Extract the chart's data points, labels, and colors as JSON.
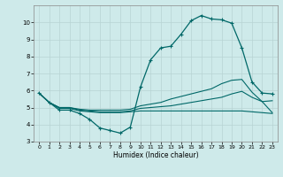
{
  "xlabel": "Humidex (Indice chaleur)",
  "xlim": [
    -0.5,
    23.5
  ],
  "ylim": [
    3,
    11
  ],
  "yticks": [
    3,
    4,
    5,
    6,
    7,
    8,
    9,
    10
  ],
  "xticks": [
    0,
    1,
    2,
    3,
    4,
    5,
    6,
    7,
    8,
    9,
    10,
    11,
    12,
    13,
    14,
    15,
    16,
    17,
    18,
    19,
    20,
    21,
    22,
    23
  ],
  "bg_color": "#ceeaea",
  "grid_color": "#b8d4d4",
  "line_color": "#006868",
  "line1_x": [
    0,
    1,
    2,
    3,
    4,
    5,
    6,
    7,
    8,
    9,
    10,
    11,
    12,
    13,
    14,
    15,
    16,
    17,
    18,
    19,
    20,
    21,
    22,
    23
  ],
  "line1_y": [
    5.85,
    5.3,
    4.85,
    4.85,
    4.65,
    4.3,
    3.8,
    3.65,
    3.5,
    3.85,
    6.2,
    7.8,
    8.5,
    8.6,
    9.3,
    10.1,
    10.4,
    10.2,
    10.15,
    9.95,
    8.5,
    6.5,
    5.85,
    5.8
  ],
  "line2_x": [
    0,
    1,
    2,
    3,
    4,
    5,
    6,
    7,
    8,
    9,
    10,
    11,
    12,
    13,
    14,
    15,
    16,
    17,
    18,
    19,
    20,
    21,
    22,
    23
  ],
  "line2_y": [
    5.85,
    5.3,
    5.0,
    5.0,
    4.9,
    4.85,
    4.85,
    4.85,
    4.85,
    4.9,
    5.1,
    5.2,
    5.3,
    5.5,
    5.65,
    5.8,
    5.95,
    6.1,
    6.4,
    6.6,
    6.65,
    5.9,
    5.35,
    5.4
  ],
  "line3_x": [
    0,
    1,
    2,
    3,
    4,
    5,
    6,
    7,
    8,
    9,
    10,
    11,
    12,
    13,
    14,
    15,
    16,
    17,
    18,
    19,
    20,
    21,
    22,
    23
  ],
  "line3_y": [
    5.85,
    5.3,
    5.0,
    5.0,
    4.85,
    4.8,
    4.75,
    4.75,
    4.75,
    4.8,
    4.95,
    5.0,
    5.05,
    5.1,
    5.2,
    5.3,
    5.4,
    5.5,
    5.6,
    5.8,
    5.95,
    5.6,
    5.35,
    4.7
  ],
  "line4_x": [
    0,
    1,
    2,
    3,
    4,
    5,
    6,
    7,
    8,
    9,
    10,
    11,
    12,
    13,
    14,
    15,
    16,
    17,
    18,
    19,
    20,
    21,
    22,
    23
  ],
  "line4_y": [
    5.85,
    5.3,
    4.95,
    4.95,
    4.8,
    4.75,
    4.7,
    4.7,
    4.7,
    4.75,
    4.8,
    4.8,
    4.8,
    4.8,
    4.8,
    4.8,
    4.8,
    4.8,
    4.8,
    4.8,
    4.8,
    4.75,
    4.7,
    4.65
  ]
}
